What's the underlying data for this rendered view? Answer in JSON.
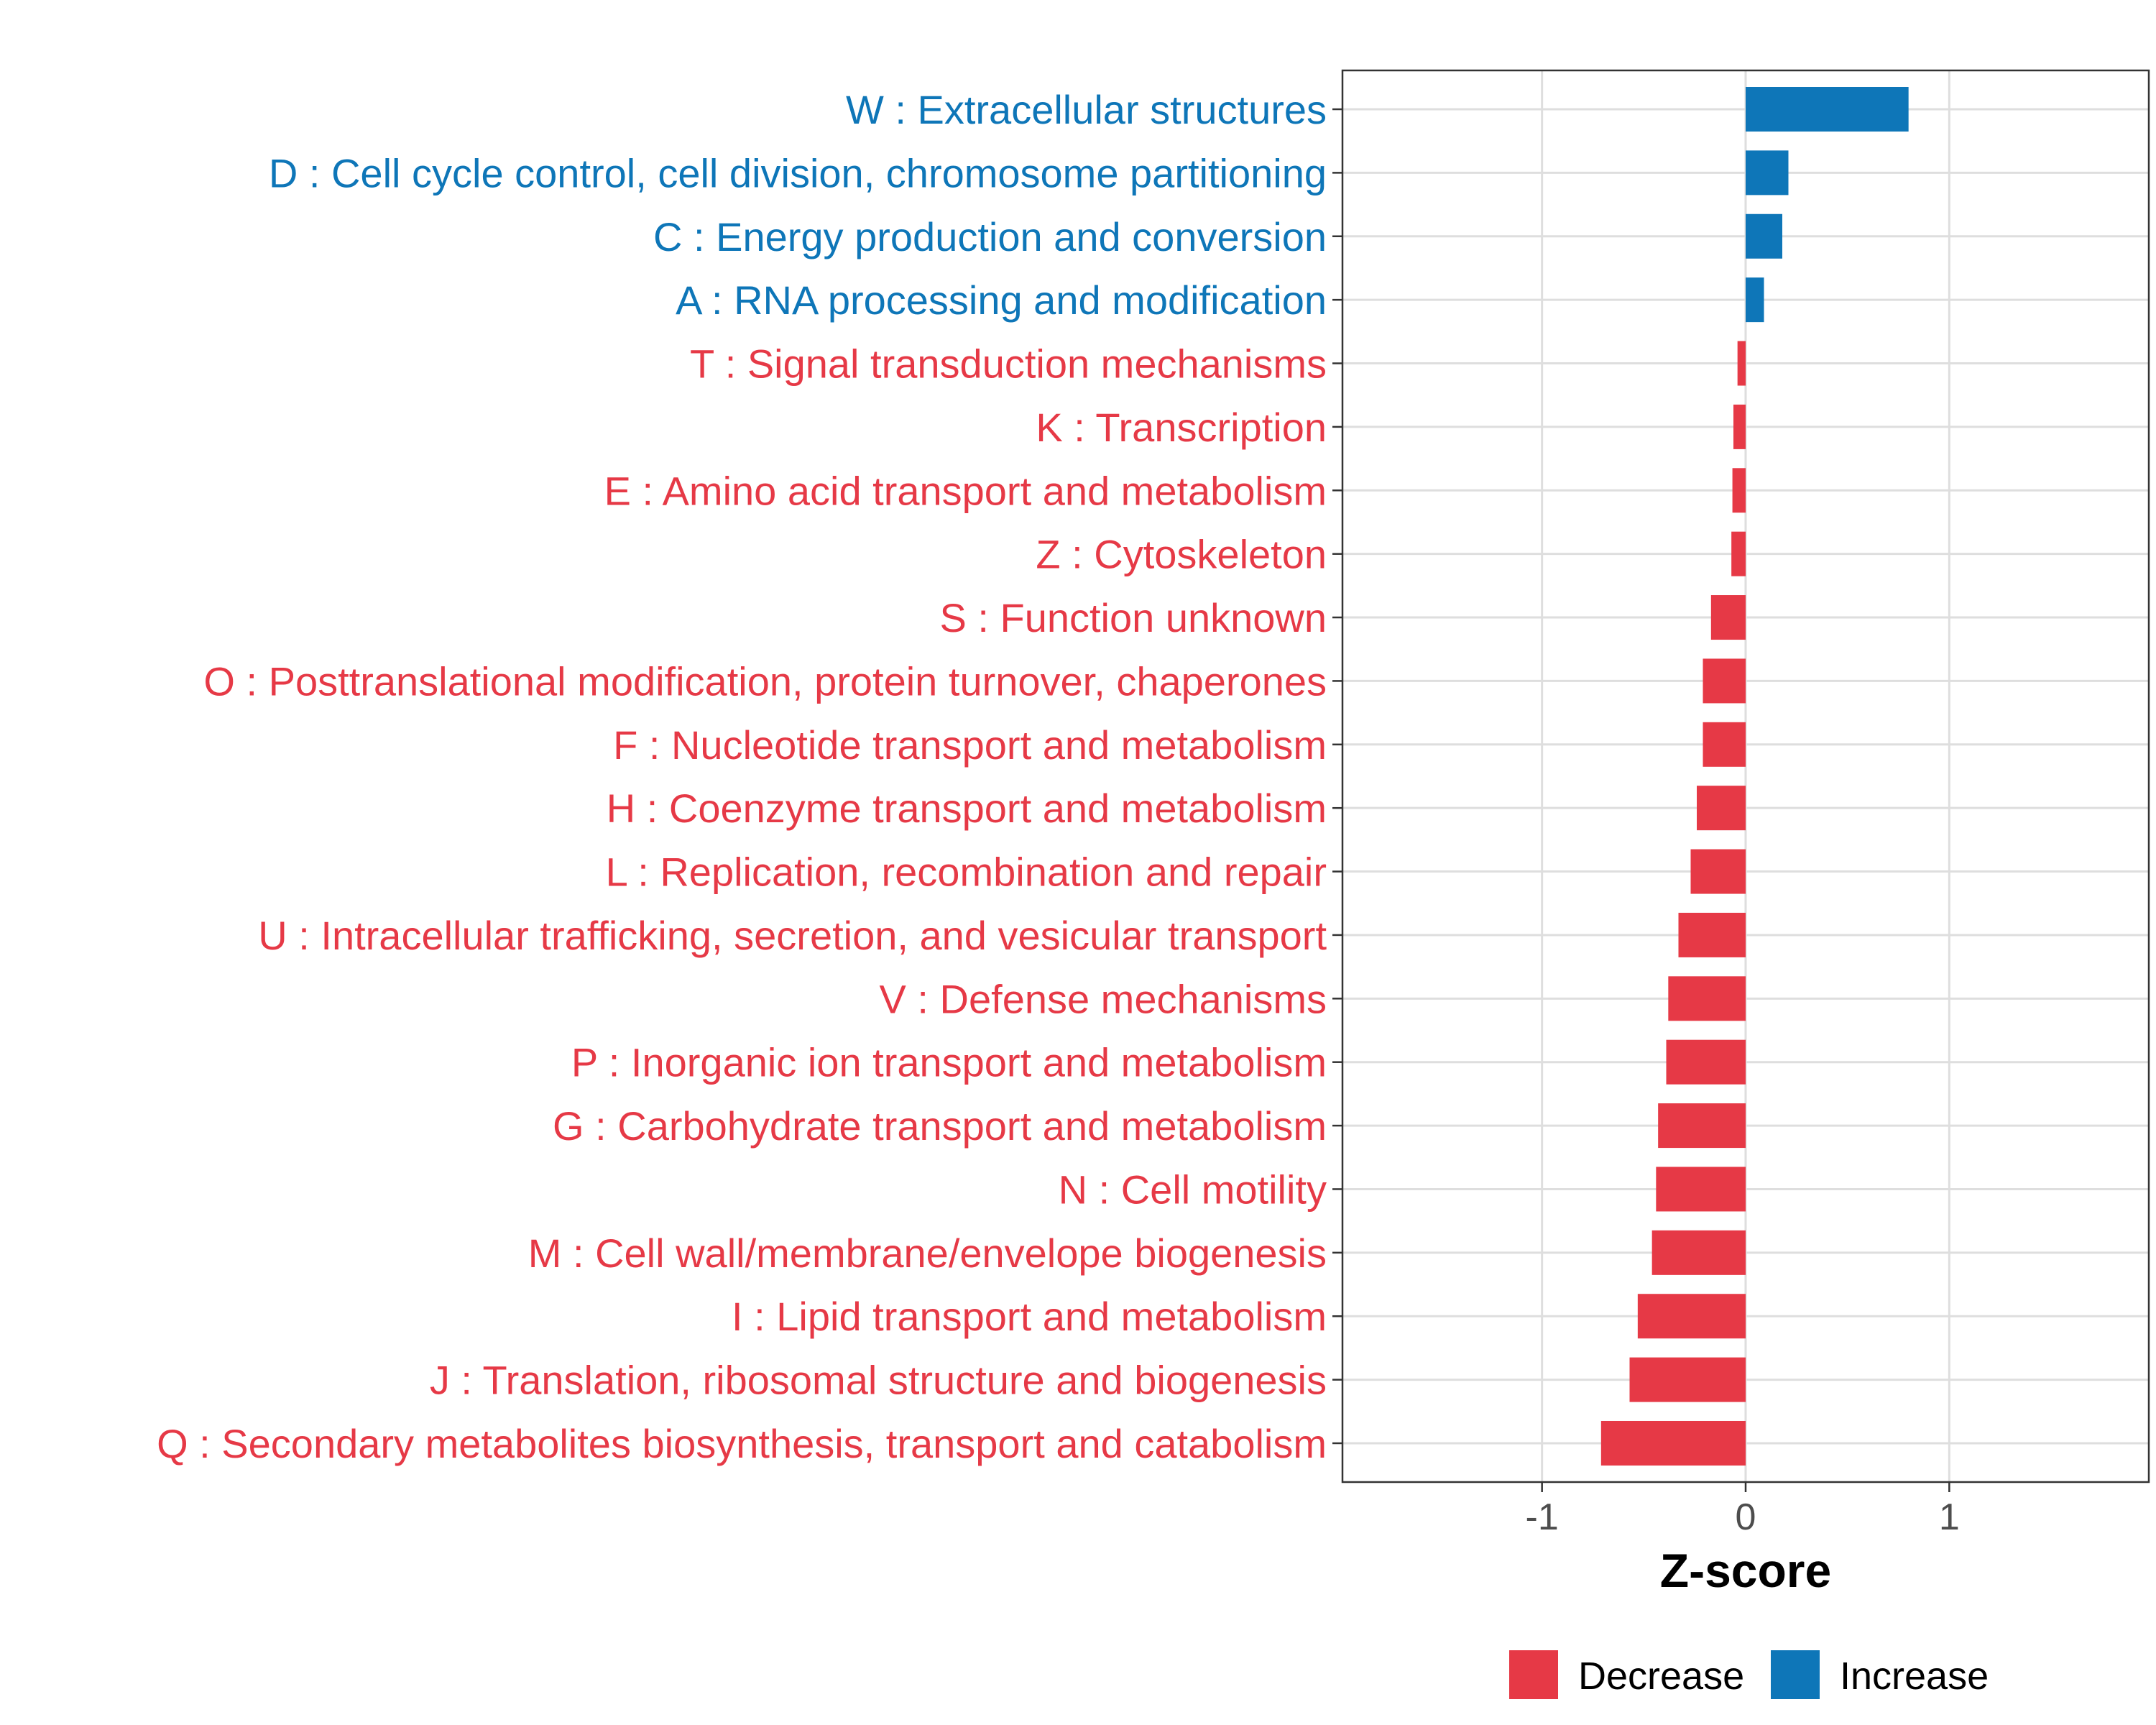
{
  "chart_data": {
    "type": "bar",
    "orientation": "horizontal",
    "xlabel": "Z-score",
    "ylabel": "",
    "xlim": [
      -1.98,
      1.98
    ],
    "x_ticks": [
      {
        "value": -1,
        "label": "-1"
      },
      {
        "value": 0,
        "label": "0"
      },
      {
        "value": 1,
        "label": "1"
      }
    ],
    "grid": true,
    "legend_position": "bottom",
    "groups": [
      {
        "name": "Decrease",
        "color": "#E63946"
      },
      {
        "name": "Increase",
        "color": "#0E76B8"
      }
    ],
    "categories": [
      "W : Extracellular structures",
      "D : Cell cycle control, cell division, chromosome partitioning",
      "C : Energy production and conversion",
      "A : RNA processing and modification",
      "T : Signal transduction mechanisms",
      "K : Transcription",
      "E : Amino acid transport and metabolism",
      "Z : Cytoskeleton",
      "S : Function unknown",
      "O : Posttranslational modification, protein turnover, chaperones",
      "F : Nucleotide transport and metabolism",
      "H : Coenzyme transport and metabolism",
      "L : Replication, recombination and repair",
      "U : Intracellular trafficking, secretion, and vesicular transport",
      "V : Defense mechanisms",
      "P : Inorganic ion transport and metabolism",
      "G : Carbohydrate transport and metabolism",
      "N : Cell motility",
      "M : Cell wall/membrane/envelope biogenesis",
      "I : Lipid transport and metabolism",
      "J : Translation, ribosomal structure and biogenesis",
      "Q : Secondary metabolites biosynthesis, transport and catabolism"
    ],
    "values": [
      0.8,
      0.21,
      0.18,
      0.09,
      -0.04,
      -0.06,
      -0.065,
      -0.07,
      -0.17,
      -0.21,
      -0.21,
      -0.24,
      -0.27,
      -0.33,
      -0.38,
      -0.39,
      -0.43,
      -0.44,
      -0.46,
      -0.53,
      -0.57,
      -0.71
    ],
    "group_of_value": [
      "Increase",
      "Increase",
      "Increase",
      "Increase",
      "Decrease",
      "Decrease",
      "Decrease",
      "Decrease",
      "Decrease",
      "Decrease",
      "Decrease",
      "Decrease",
      "Decrease",
      "Decrease",
      "Decrease",
      "Decrease",
      "Decrease",
      "Decrease",
      "Decrease",
      "Decrease",
      "Decrease",
      "Decrease"
    ]
  }
}
